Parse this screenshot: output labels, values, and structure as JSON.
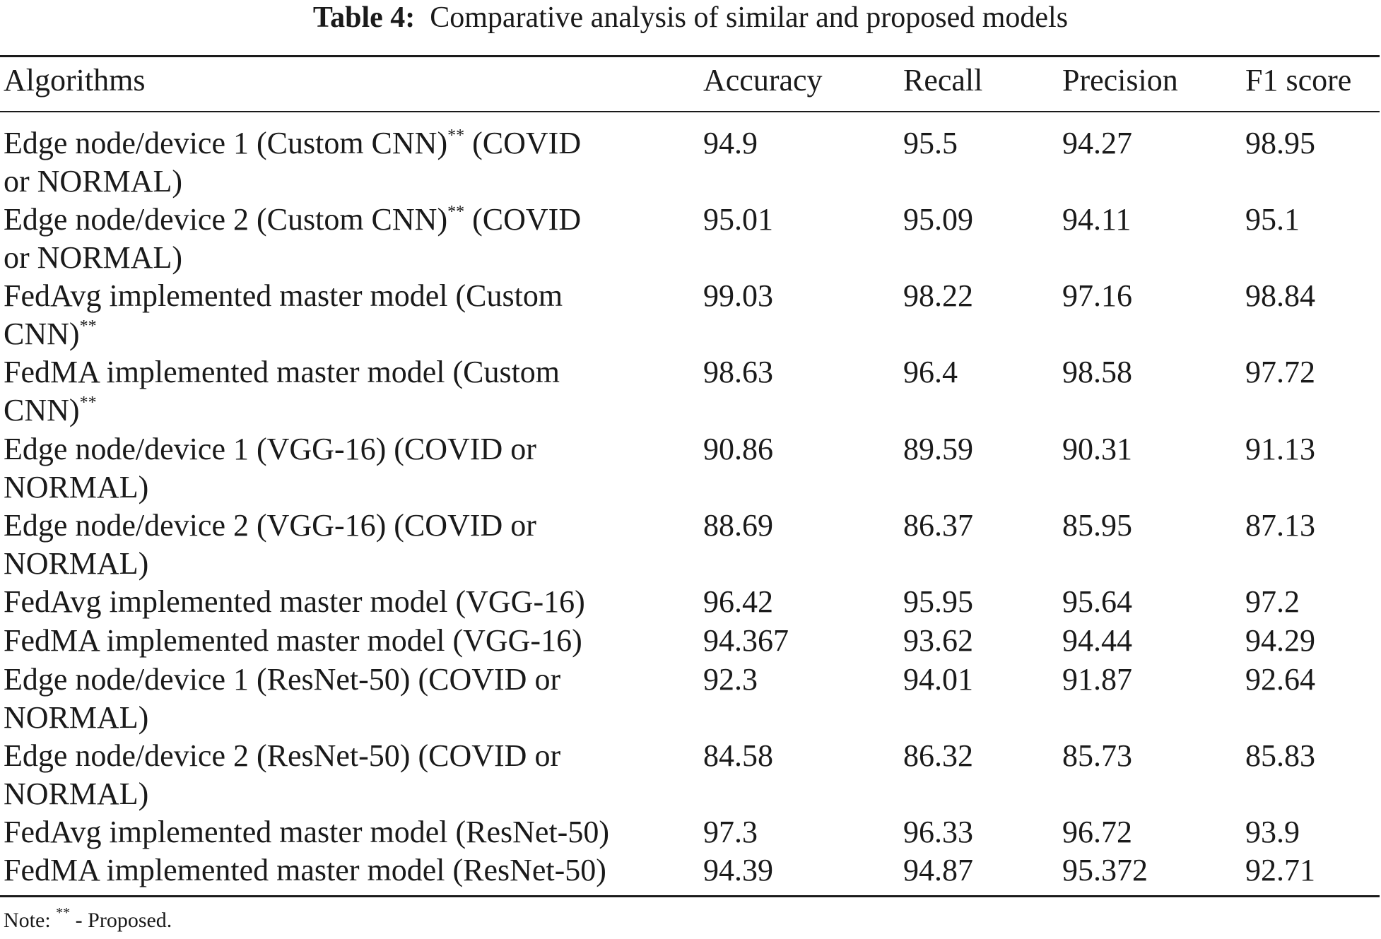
{
  "caption": {
    "label": "Table 4:",
    "text": "Comparative analysis of similar and proposed models"
  },
  "columns": [
    "Algorithms",
    "Accuracy",
    "Recall",
    "Precision",
    "F1 score"
  ],
  "proposed_mark": "**",
  "rows": [
    {
      "l1": "Edge node/device 1 (Custom CNN)",
      "m1": "**",
      "l1b": " (COVID",
      "l2": "or NORMAL)",
      "m2": "",
      "acc": "94.9",
      "rec": "95.5",
      "pre": "94.27",
      "f1": "98.95"
    },
    {
      "l1": "Edge node/device 2 (Custom CNN)",
      "m1": "**",
      "l1b": " (COVID",
      "l2": "or NORMAL)",
      "m2": "",
      "acc": "95.01",
      "rec": "95.09",
      "pre": "94.11",
      "f1": "95.1"
    },
    {
      "l1": "FedAvg implemented master model (Custom",
      "m1": "",
      "l1b": "",
      "l2": "CNN)",
      "m2": "**",
      "acc": "99.03",
      "rec": "98.22",
      "pre": "97.16",
      "f1": "98.84"
    },
    {
      "l1": "FedMA implemented master model (Custom",
      "m1": "",
      "l1b": "",
      "l2": "CNN)",
      "m2": "**",
      "acc": "98.63",
      "rec": "96.4",
      "pre": "98.58",
      "f1": "97.72"
    },
    {
      "l1": "Edge node/device 1 (VGG-16) (COVID or",
      "m1": "",
      "l1b": "",
      "l2": "NORMAL)",
      "m2": "",
      "acc": "90.86",
      "rec": "89.59",
      "pre": "90.31",
      "f1": "91.13"
    },
    {
      "l1": "Edge node/device 2 (VGG-16) (COVID or",
      "m1": "",
      "l1b": "",
      "l2": "NORMAL)",
      "m2": "",
      "acc": "88.69",
      "rec": "86.37",
      "pre": "85.95",
      "f1": "87.13"
    },
    {
      "l1": "FedAvg implemented master model (VGG-16)",
      "m1": "",
      "l1b": "",
      "l2": "",
      "m2": "",
      "acc": "96.42",
      "rec": "95.95",
      "pre": "95.64",
      "f1": "97.2"
    },
    {
      "l1": "FedMA implemented master model (VGG-16)",
      "m1": "",
      "l1b": "",
      "l2": "",
      "m2": "",
      "acc": "94.367",
      "rec": "93.62",
      "pre": "94.44",
      "f1": "94.29"
    },
    {
      "l1": "Edge node/device 1 (ResNet-50) (COVID or",
      "m1": "",
      "l1b": "",
      "l2": "NORMAL)",
      "m2": "",
      "acc": "92.3",
      "rec": "94.01",
      "pre": "91.87",
      "f1": "92.64"
    },
    {
      "l1": "Edge node/device 2 (ResNet-50) (COVID or",
      "m1": "",
      "l1b": "",
      "l2": "NORMAL)",
      "m2": "",
      "acc": "84.58",
      "rec": "86.32",
      "pre": "85.73",
      "f1": "85.83"
    },
    {
      "l1": "FedAvg implemented master model (ResNet-50)",
      "m1": "",
      "l1b": "",
      "l2": "",
      "m2": "",
      "acc": "97.3",
      "rec": "96.33",
      "pre": "96.72",
      "f1": "93.9"
    },
    {
      "l1": "FedMA implemented master model (ResNet-50)",
      "m1": "",
      "l1b": "",
      "l2": "",
      "m2": "",
      "acc": "94.39",
      "rec": "94.87",
      "pre": "95.372",
      "f1": "92.71"
    }
  ],
  "note": {
    "prefix": "Note: ",
    "mark": "**",
    "text": " - Proposed."
  }
}
